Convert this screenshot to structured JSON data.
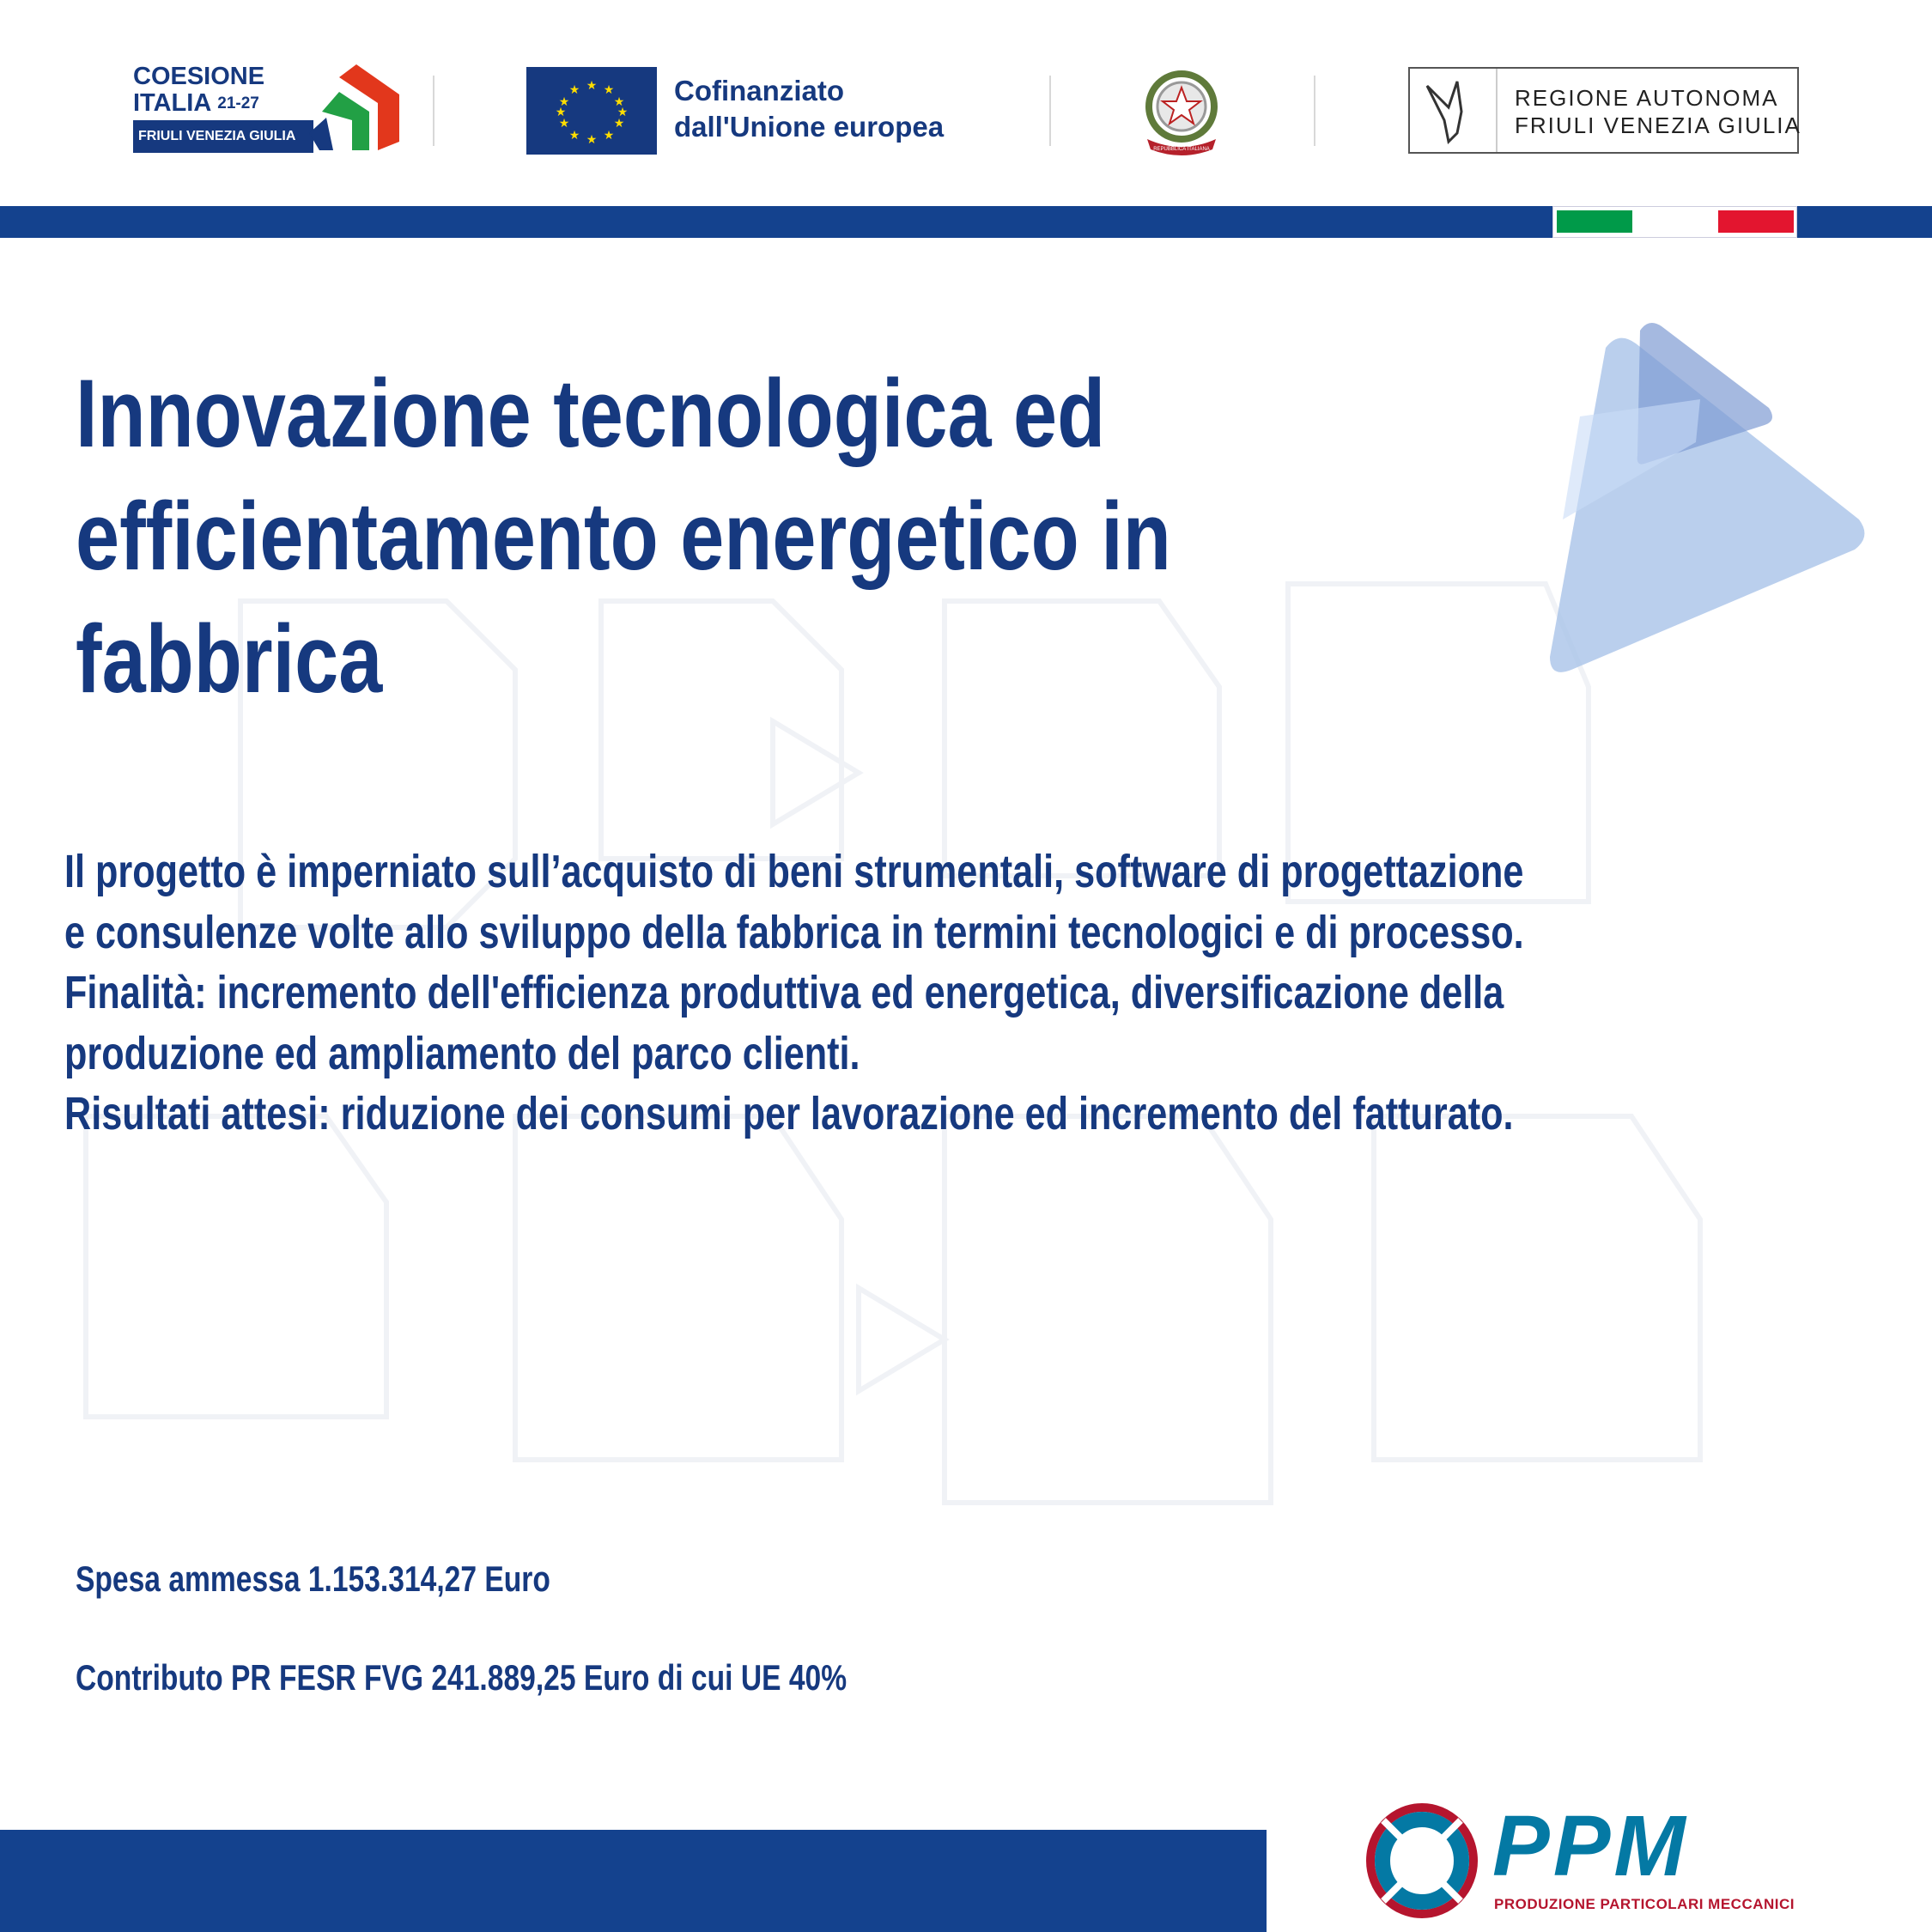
{
  "header": {
    "coesione": {
      "line1": "COESIONE",
      "line2": "ITALIA",
      "years": "21-27",
      "region": "FRIULI VENEZIA GIULIA"
    },
    "eu": {
      "line1": "Cofinanziato",
      "line2": "dall'Unione europea"
    },
    "emblem": {
      "ribbon": "REPUBBLICA ITALIANA"
    },
    "regione": {
      "line1": "REGIONE AUTONOMA",
      "line2": "FRIULI VENEZIA GIULIA"
    }
  },
  "colors": {
    "navy": "#14428e",
    "title": "#16397f",
    "flag_green": "#009a49",
    "flag_red": "#e3152f",
    "ppm_teal": "#0479a4",
    "ppm_red": "#b5152e"
  },
  "title": {
    "lines": [
      "Innovazione tecnologica ed",
      "efficientamento energetico in",
      "fabbrica"
    ]
  },
  "body": {
    "lines": [
      "Il progetto è imperniato sull’acquisto di beni strumentali, software di progettazione",
      "e consulenze volte allo sviluppo della fabbrica in termini tecnologici e di processo.",
      "Finalità: incremento dell'efficienza produttiva ed energetica, diversificazione della",
      "produzione ed ampliamento del parco clienti.",
      "Risultati attesi: riduzione dei consumi per lavorazione ed incremento del fatturato."
    ]
  },
  "funding": {
    "spesa": "Spesa ammessa 1.153.314,27 Euro",
    "contributo": "Contributo PR FESR FVG 241.889,25 Euro di cui UE 40%"
  },
  "logo": {
    "name": "PPM",
    "tagline": "PRODUZIONE PARTICOLARI MECCANICI"
  }
}
